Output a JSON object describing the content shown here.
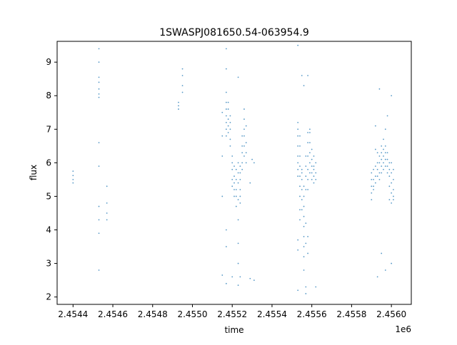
{
  "chart_data": {
    "type": "scatter",
    "title": "1SWASPJ081650.54-063954.9",
    "xlabel": "time",
    "ylabel": "flux",
    "x_offset_label": "1e6",
    "xlim": [
      2.45432,
      2.4561
    ],
    "ylim": [
      1.78,
      9.62
    ],
    "x_ticks": [
      {
        "value": 2.4544,
        "label": "2.4544"
      },
      {
        "value": 2.4546,
        "label": "2.4546"
      },
      {
        "value": 2.4548,
        "label": "2.4548"
      },
      {
        "value": 2.455,
        "label": "2.4550"
      },
      {
        "value": 2.4552,
        "label": "2.4552"
      },
      {
        "value": 2.4554,
        "label": "2.4554"
      },
      {
        "value": 2.4556,
        "label": "2.4556"
      },
      {
        "value": 2.4558,
        "label": "2.4558"
      },
      {
        "value": 2.456,
        "label": "2.4560"
      }
    ],
    "y_ticks": [
      {
        "value": 2,
        "label": "2"
      },
      {
        "value": 3,
        "label": "3"
      },
      {
        "value": 4,
        "label": "4"
      },
      {
        "value": 5,
        "label": "5"
      },
      {
        "value": 6,
        "label": "6"
      },
      {
        "value": 7,
        "label": "7"
      },
      {
        "value": 8,
        "label": "8"
      },
      {
        "value": 9,
        "label": "9"
      }
    ],
    "grid": false,
    "legend": "none",
    "point_color": "#1f77b4",
    "series": [
      {
        "values": [
          [
            2.4544,
            5.75
          ],
          [
            2.4544,
            5.62
          ],
          [
            2.4544,
            5.5
          ],
          [
            2.4544,
            5.4
          ],
          [
            2.45453,
            8.2
          ],
          [
            2.45453,
            8.05
          ],
          [
            2.45453,
            7.95
          ],
          [
            2.45453,
            8.4
          ],
          [
            2.45453,
            8.55
          ],
          [
            2.45453,
            9.0
          ],
          [
            2.45453,
            9.4
          ],
          [
            2.45453,
            6.6
          ],
          [
            2.45453,
            5.9
          ],
          [
            2.45453,
            4.7
          ],
          [
            2.45453,
            4.3
          ],
          [
            2.45453,
            3.9
          ],
          [
            2.45453,
            2.8
          ],
          [
            2.45457,
            5.3
          ],
          [
            2.45457,
            4.8
          ],
          [
            2.45457,
            4.5
          ],
          [
            2.45457,
            4.3
          ],
          [
            2.45493,
            7.8
          ],
          [
            2.45493,
            7.7
          ],
          [
            2.45493,
            7.6
          ],
          [
            2.45495,
            8.8
          ],
          [
            2.45495,
            8.6
          ],
          [
            2.45495,
            8.3
          ],
          [
            2.45495,
            8.1
          ],
          [
            2.45515,
            7.5
          ],
          [
            2.45515,
            6.8
          ],
          [
            2.45515,
            6.2
          ],
          [
            2.45515,
            5.0
          ],
          [
            2.45515,
            2.65
          ],
          [
            2.45517,
            8.1
          ],
          [
            2.45517,
            7.8
          ],
          [
            2.45517,
            7.6
          ],
          [
            2.45517,
            7.4
          ],
          [
            2.45517,
            7.2
          ],
          [
            2.45517,
            7.0
          ],
          [
            2.45517,
            6.8
          ],
          [
            2.45517,
            8.8
          ],
          [
            2.45517,
            9.4
          ],
          [
            2.45517,
            4.0
          ],
          [
            2.45517,
            3.5
          ],
          [
            2.45517,
            2.4
          ],
          [
            2.45518,
            7.6
          ],
          [
            2.45518,
            7.3
          ],
          [
            2.45518,
            7.1
          ],
          [
            2.45518,
            6.9
          ],
          [
            2.45518,
            7.8
          ],
          [
            2.45519,
            7.4
          ],
          [
            2.45519,
            7.0
          ],
          [
            2.45519,
            6.7
          ],
          [
            2.45519,
            6.5
          ],
          [
            2.45519,
            7.2
          ],
          [
            2.4552,
            6.2
          ],
          [
            2.4552,
            6.0
          ],
          [
            2.4552,
            5.8
          ],
          [
            2.4552,
            5.5
          ],
          [
            2.4552,
            5.3
          ],
          [
            2.4552,
            2.6
          ],
          [
            2.45521,
            5.9
          ],
          [
            2.45521,
            5.6
          ],
          [
            2.45521,
            5.4
          ],
          [
            2.45521,
            5.2
          ],
          [
            2.45521,
            5.0
          ],
          [
            2.45522,
            5.8
          ],
          [
            2.45522,
            5.5
          ],
          [
            2.45522,
            5.2
          ],
          [
            2.45522,
            5.0
          ],
          [
            2.45522,
            4.7
          ],
          [
            2.45523,
            6.0
          ],
          [
            2.45523,
            5.7
          ],
          [
            2.45523,
            5.4
          ],
          [
            2.45523,
            4.9
          ],
          [
            2.45523,
            4.3
          ],
          [
            2.45523,
            3.6
          ],
          [
            2.45523,
            3.0
          ],
          [
            2.45523,
            2.35
          ],
          [
            2.45523,
            8.55
          ],
          [
            2.45524,
            5.7
          ],
          [
            2.45524,
            5.5
          ],
          [
            2.45524,
            5.2
          ],
          [
            2.45524,
            5.0
          ],
          [
            2.45524,
            4.8
          ],
          [
            2.45524,
            5.9
          ],
          [
            2.45524,
            2.6
          ],
          [
            2.45525,
            6.0
          ],
          [
            2.45525,
            6.3
          ],
          [
            2.45525,
            6.5
          ],
          [
            2.45525,
            5.8
          ],
          [
            2.45525,
            6.8
          ],
          [
            2.45526,
            6.2
          ],
          [
            2.45526,
            6.5
          ],
          [
            2.45526,
            6.8
          ],
          [
            2.45526,
            7.0
          ],
          [
            2.45526,
            7.3
          ],
          [
            2.45526,
            7.6
          ],
          [
            2.45527,
            6.3
          ],
          [
            2.45527,
            6.6
          ],
          [
            2.45527,
            6.0
          ],
          [
            2.45527,
            7.1
          ],
          [
            2.45529,
            5.4
          ],
          [
            2.45529,
            2.55
          ],
          [
            2.4553,
            6.1
          ],
          [
            2.45531,
            6.0
          ],
          [
            2.45531,
            2.5
          ],
          [
            2.45553,
            7.0
          ],
          [
            2.45553,
            6.8
          ],
          [
            2.45553,
            6.5
          ],
          [
            2.45553,
            6.2
          ],
          [
            2.45553,
            6.0
          ],
          [
            2.45553,
            5.8
          ],
          [
            2.45553,
            5.6
          ],
          [
            2.45553,
            7.2
          ],
          [
            2.45553,
            9.5
          ],
          [
            2.45553,
            3.7
          ],
          [
            2.45553,
            3.4
          ],
          [
            2.45553,
            2.2
          ],
          [
            2.45554,
            6.8
          ],
          [
            2.45554,
            6.5
          ],
          [
            2.45554,
            6.2
          ],
          [
            2.45554,
            5.9
          ],
          [
            2.45554,
            5.6
          ],
          [
            2.45554,
            5.3
          ],
          [
            2.45554,
            5.0
          ],
          [
            2.45554,
            4.6
          ],
          [
            2.45554,
            4.3
          ],
          [
            2.45555,
            5.8
          ],
          [
            2.45555,
            5.5
          ],
          [
            2.45555,
            5.2
          ],
          [
            2.45555,
            4.9
          ],
          [
            2.45555,
            4.6
          ],
          [
            2.45555,
            5.7
          ],
          [
            2.45555,
            8.6
          ],
          [
            2.45556,
            5.3
          ],
          [
            2.45556,
            5.0
          ],
          [
            2.45556,
            4.7
          ],
          [
            2.45556,
            4.4
          ],
          [
            2.45556,
            4.1
          ],
          [
            2.45556,
            3.8
          ],
          [
            2.45556,
            3.5
          ],
          [
            2.45556,
            3.2
          ],
          [
            2.45556,
            2.8
          ],
          [
            2.45556,
            8.3
          ],
          [
            2.45557,
            5.2
          ],
          [
            2.45557,
            5.6
          ],
          [
            2.45557,
            5.9
          ],
          [
            2.45557,
            6.2
          ],
          [
            2.45557,
            4.2
          ],
          [
            2.45557,
            3.6
          ],
          [
            2.45557,
            2.3
          ],
          [
            2.45557,
            2.1
          ],
          [
            2.45558,
            5.8
          ],
          [
            2.45558,
            6.2
          ],
          [
            2.45558,
            6.6
          ],
          [
            2.45558,
            6.9
          ],
          [
            2.45558,
            5.5
          ],
          [
            2.45558,
            5.2
          ],
          [
            2.45558,
            8.6
          ],
          [
            2.45558,
            3.8
          ],
          [
            2.45558,
            3.3
          ],
          [
            2.45559,
            6.3
          ],
          [
            2.45559,
            6.6
          ],
          [
            2.45559,
            6.9
          ],
          [
            2.45559,
            7.0
          ],
          [
            2.45559,
            6.0
          ],
          [
            2.45559,
            5.7
          ],
          [
            2.4556,
            6.4
          ],
          [
            2.4556,
            6.1
          ],
          [
            2.4556,
            5.9
          ],
          [
            2.4556,
            5.7
          ],
          [
            2.4556,
            5.5
          ],
          [
            2.45561,
            6.2
          ],
          [
            2.45561,
            5.9
          ],
          [
            2.45561,
            5.6
          ],
          [
            2.45561,
            5.4
          ],
          [
            2.45561,
            5.8
          ],
          [
            2.45562,
            6.0
          ],
          [
            2.45562,
            5.7
          ],
          [
            2.45562,
            5.5
          ],
          [
            2.45562,
            2.3
          ],
          [
            2.4559,
            5.7
          ],
          [
            2.4559,
            5.5
          ],
          [
            2.4559,
            5.3
          ],
          [
            2.4559,
            5.1
          ],
          [
            2.4559,
            4.9
          ],
          [
            2.45591,
            5.8
          ],
          [
            2.45591,
            5.5
          ],
          [
            2.45591,
            5.3
          ],
          [
            2.45591,
            5.2
          ],
          [
            2.45592,
            5.9
          ],
          [
            2.45592,
            5.6
          ],
          [
            2.45592,
            5.4
          ],
          [
            2.45592,
            7.1
          ],
          [
            2.45592,
            6.4
          ],
          [
            2.45593,
            6.0
          ],
          [
            2.45593,
            5.8
          ],
          [
            2.45593,
            5.6
          ],
          [
            2.45593,
            6.3
          ],
          [
            2.45593,
            2.6
          ],
          [
            2.45594,
            6.2
          ],
          [
            2.45594,
            6.0
          ],
          [
            2.45594,
            5.7
          ],
          [
            2.45594,
            5.5
          ],
          [
            2.45594,
            8.2
          ],
          [
            2.45595,
            6.3
          ],
          [
            2.45595,
            6.1
          ],
          [
            2.45595,
            5.9
          ],
          [
            2.45595,
            5.7
          ],
          [
            2.45595,
            6.5
          ],
          [
            2.45595,
            3.3
          ],
          [
            2.45596,
            6.4
          ],
          [
            2.45596,
            6.2
          ],
          [
            2.45596,
            6.0
          ],
          [
            2.45596,
            5.8
          ],
          [
            2.45596,
            6.7
          ],
          [
            2.45597,
            6.5
          ],
          [
            2.45597,
            6.3
          ],
          [
            2.45597,
            6.1
          ],
          [
            2.45597,
            5.9
          ],
          [
            2.45597,
            7.0
          ],
          [
            2.45597,
            2.8
          ],
          [
            2.45598,
            6.3
          ],
          [
            2.45598,
            6.1
          ],
          [
            2.45598,
            5.9
          ],
          [
            2.45598,
            5.7
          ],
          [
            2.45598,
            7.4
          ],
          [
            2.45599,
            6.0
          ],
          [
            2.45599,
            5.8
          ],
          [
            2.45599,
            5.6
          ],
          [
            2.45599,
            5.3
          ],
          [
            2.45599,
            4.9
          ],
          [
            2.456,
            6.0
          ],
          [
            2.456,
            5.7
          ],
          [
            2.456,
            5.4
          ],
          [
            2.456,
            5.1
          ],
          [
            2.456,
            4.8
          ],
          [
            2.456,
            8.0
          ],
          [
            2.456,
            3.0
          ],
          [
            2.45601,
            5.8
          ],
          [
            2.45601,
            5.5
          ],
          [
            2.45601,
            5.2
          ],
          [
            2.45601,
            5.0
          ],
          [
            2.45601,
            4.9
          ]
        ]
      }
    ]
  }
}
